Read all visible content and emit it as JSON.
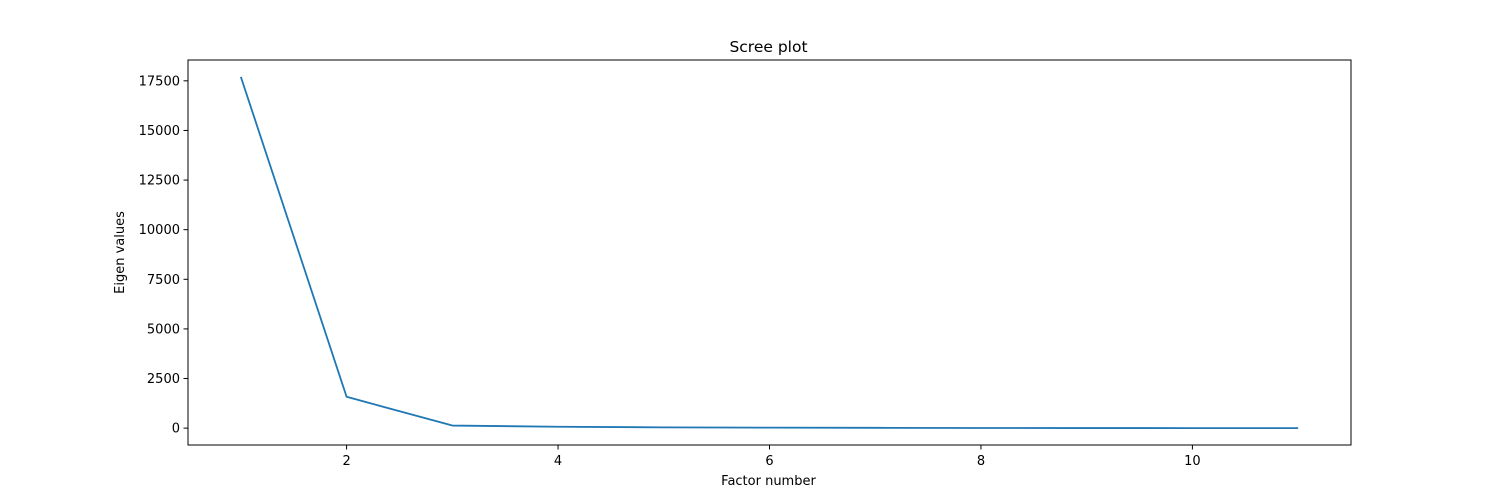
{
  "chart_data": {
    "type": "line",
    "title": "Scree plot",
    "xlabel": "Factor number",
    "ylabel": "Eigen values",
    "xlim": [
      0.5,
      11.5
    ],
    "ylim": [
      -850,
      18550
    ],
    "xticks": [
      2,
      4,
      6,
      8,
      10
    ],
    "yticks": [
      0,
      2500,
      5000,
      7500,
      10000,
      12500,
      15000,
      17500
    ],
    "grid": false,
    "line_color": "#1f77b4",
    "series": [
      {
        "x": [
          1,
          2,
          3,
          4,
          5,
          6,
          7,
          8,
          9,
          10,
          11
        ],
        "values": [
          17700,
          1580,
          130,
          70,
          40,
          25,
          15,
          8,
          4,
          2,
          1
        ]
      }
    ]
  }
}
